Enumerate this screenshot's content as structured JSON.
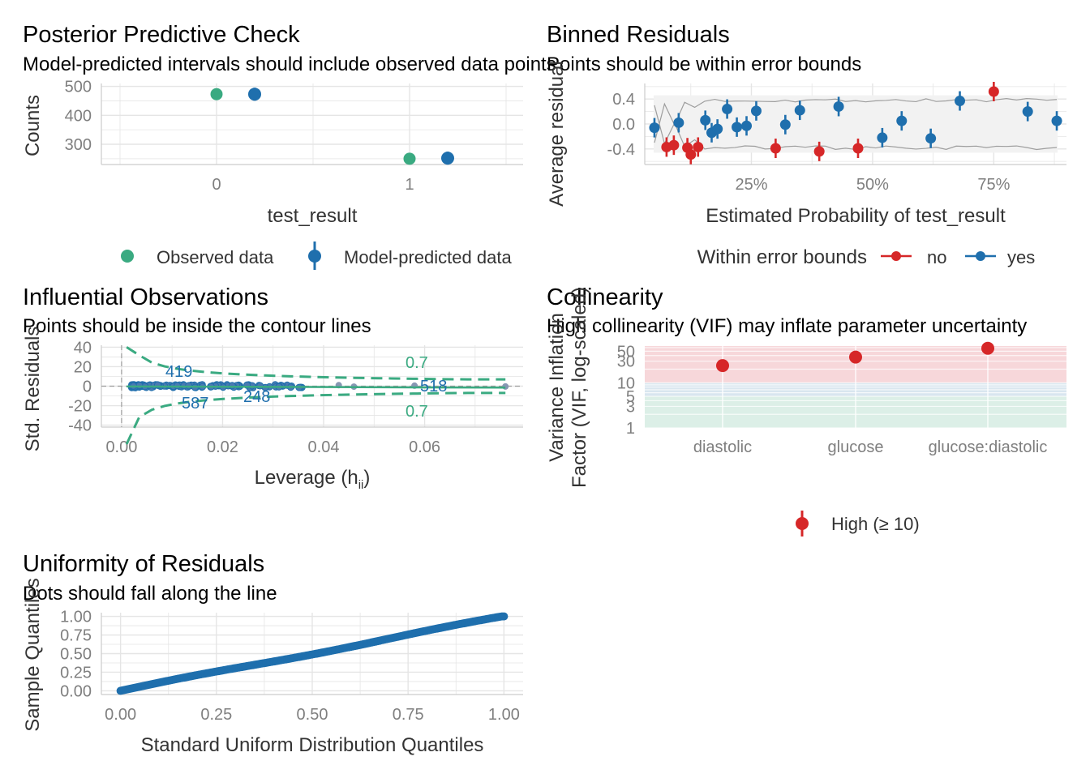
{
  "chart_data": [
    {
      "type": "scatter",
      "title": "Posterior Predictive Check",
      "subtitle": "Model-predicted intervals should include observed data points",
      "xlabel": "test_result",
      "ylabel": "Counts",
      "x_ticks": [
        "0",
        "1"
      ],
      "y_ticks": [
        300,
        400,
        500
      ],
      "ylim": [
        230,
        510
      ],
      "series": [
        {
          "name": "Observed data",
          "x": [
            "0",
            "1"
          ],
          "values": [
            473,
            250
          ]
        },
        {
          "name": "Model-predicted data",
          "x": [
            "0",
            "1"
          ],
          "values": [
            473,
            252
          ]
        }
      ],
      "legend": [
        "Observed data",
        "Model-predicted data"
      ],
      "legend_position": "bottom"
    },
    {
      "type": "scatter",
      "title": "Binned Residuals",
      "subtitle": "Points should be within error bounds",
      "xlabel": "Estimated Probability of test_result",
      "ylabel": "Average residual",
      "x_ticks": [
        "25%",
        "50%",
        "75%"
      ],
      "y_ticks": [
        "0.4",
        "0.0",
        "-0.4"
      ],
      "xlim": [
        0.03,
        0.9
      ],
      "ylim": [
        -0.65,
        0.65
      ],
      "legend_title": "Within error bounds",
      "legend": [
        "no",
        "yes"
      ],
      "legend_position": "bottom",
      "points": [
        {
          "x": 0.05,
          "y": -0.06,
          "g": "yes"
        },
        {
          "x": 0.075,
          "y": -0.37,
          "g": "no"
        },
        {
          "x": 0.09,
          "y": -0.34,
          "g": "no"
        },
        {
          "x": 0.1,
          "y": 0.02,
          "g": "yes"
        },
        {
          "x": 0.118,
          "y": -0.38,
          "g": "no"
        },
        {
          "x": 0.125,
          "y": -0.49,
          "g": "no"
        },
        {
          "x": 0.14,
          "y": -0.37,
          "g": "no"
        },
        {
          "x": 0.155,
          "y": 0.06,
          "g": "yes"
        },
        {
          "x": 0.168,
          "y": -0.14,
          "g": "yes"
        },
        {
          "x": 0.18,
          "y": -0.08,
          "g": "yes"
        },
        {
          "x": 0.2,
          "y": 0.24,
          "g": "yes"
        },
        {
          "x": 0.22,
          "y": -0.05,
          "g": "yes"
        },
        {
          "x": 0.24,
          "y": -0.03,
          "g": "yes"
        },
        {
          "x": 0.26,
          "y": 0.21,
          "g": "yes"
        },
        {
          "x": 0.3,
          "y": -0.39,
          "g": "no"
        },
        {
          "x": 0.32,
          "y": -0.01,
          "g": "yes"
        },
        {
          "x": 0.35,
          "y": 0.22,
          "g": "yes"
        },
        {
          "x": 0.39,
          "y": -0.44,
          "g": "no"
        },
        {
          "x": 0.43,
          "y": 0.28,
          "g": "yes"
        },
        {
          "x": 0.47,
          "y": -0.39,
          "g": "no"
        },
        {
          "x": 0.52,
          "y": -0.22,
          "g": "yes"
        },
        {
          "x": 0.56,
          "y": 0.05,
          "g": "yes"
        },
        {
          "x": 0.62,
          "y": -0.23,
          "g": "yes"
        },
        {
          "x": 0.68,
          "y": 0.37,
          "g": "yes"
        },
        {
          "x": 0.75,
          "y": 0.52,
          "g": "no"
        },
        {
          "x": 0.82,
          "y": 0.2,
          "g": "yes"
        },
        {
          "x": 0.88,
          "y": 0.05,
          "g": "yes"
        }
      ]
    },
    {
      "type": "scatter",
      "title": "Influential Observations",
      "subtitle": "Points should be inside the contour lines",
      "xlabel": "Leverage (hii)",
      "ylabel": "Std. Residuals",
      "x_ticks": [
        "0.00",
        "0.02",
        "0.04",
        "0.06"
      ],
      "y_ticks": [
        "40",
        "20",
        "0",
        "-20",
        "-40"
      ],
      "xlim": [
        -0.004,
        0.0795
      ],
      "ylim": [
        -42,
        42
      ],
      "contour_labels": [
        "0.7",
        "0.7"
      ],
      "point_labels": [
        "419",
        "587",
        "248",
        "518"
      ]
    },
    {
      "type": "scatter",
      "title": "Collinearity",
      "subtitle": "High collinearity (VIF) may inflate parameter uncertainty",
      "xlabel": "",
      "ylabel": "Variance Inflation Factor (VIF, log-scaled)",
      "categories": [
        "diastolic",
        "glucose",
        "glucose:diastolic"
      ],
      "values": [
        24,
        37,
        58
      ],
      "y_ticks": [
        "1",
        "3",
        "5",
        "10",
        "30",
        "50"
      ],
      "ylim": [
        1,
        65
      ],
      "log_scale": true,
      "legend": [
        "High (≥ 10)"
      ],
      "legend_position": "bottom"
    },
    {
      "type": "scatter",
      "title": "Uniformity of Residuals",
      "subtitle": "Dots should fall along the line",
      "xlabel": "Standard Uniform Distribution Quantiles",
      "ylabel": "Sample Quantiles",
      "x_ticks": [
        "0.00",
        "0.25",
        "0.50",
        "0.75",
        "1.00"
      ],
      "y_ticks": [
        "1.00",
        "0.75",
        "0.50",
        "0.25",
        "0.00"
      ],
      "xlim": [
        -0.05,
        1.05
      ],
      "ylim": [
        -0.05,
        1.05
      ]
    }
  ],
  "colors": {
    "red": "#d62728",
    "blue": "#1f6fad",
    "green": "#3aaa81",
    "grid": "#e5e5e5",
    "text": "#333333"
  }
}
